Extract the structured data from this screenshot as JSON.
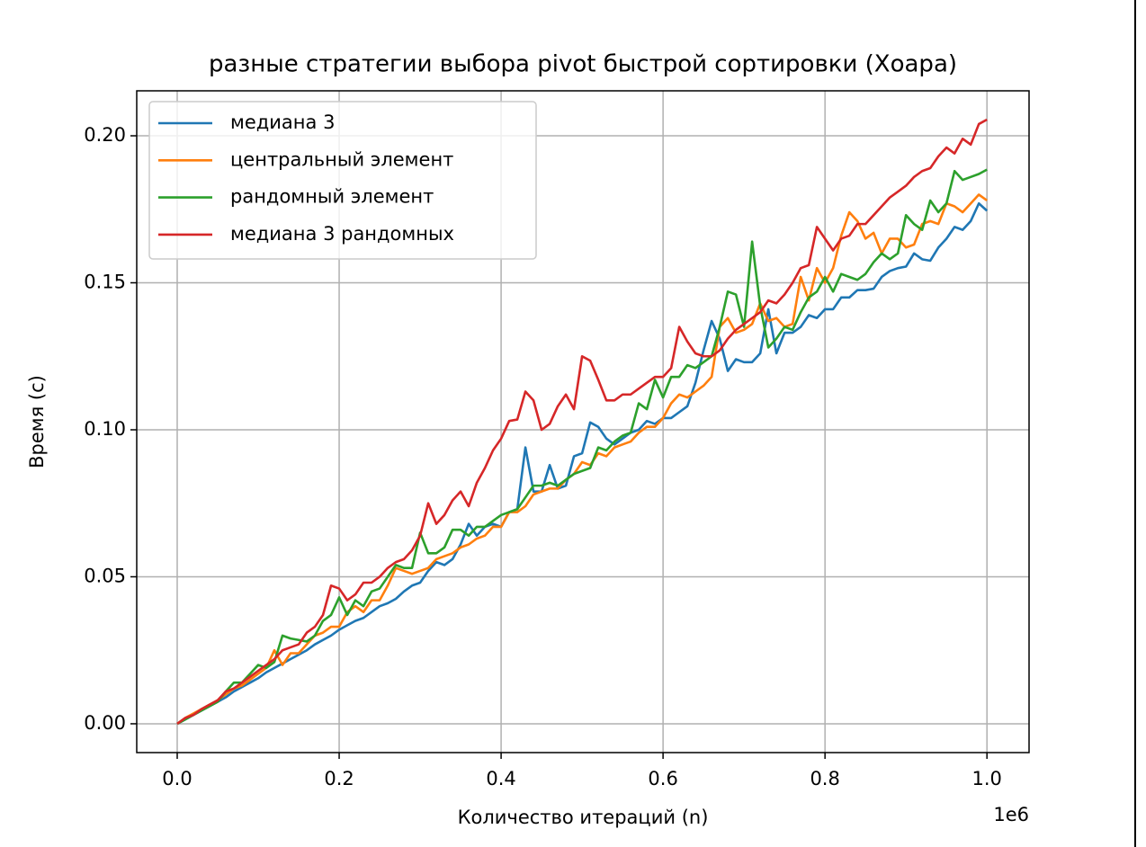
{
  "chart_data": {
    "type": "line",
    "title": "разные стратегии выбора pivot быстрой сортировки (Хоара)",
    "x_label": "Количество итераций (n)",
    "y_label": "Время (с)",
    "x_offset_label": "1e6",
    "grid": true,
    "legend": "upper left",
    "xlim": [
      -50000,
      1052000
    ],
    "ylim": [
      -0.0098,
      0.2153
    ],
    "xticks": [
      {
        "value": 0,
        "label": "0.0"
      },
      {
        "value": 200000,
        "label": "0.2"
      },
      {
        "value": 400000,
        "label": "0.4"
      },
      {
        "value": 600000,
        "label": "0.6"
      },
      {
        "value": 800000,
        "label": "0.8"
      },
      {
        "value": 1000000,
        "label": "1.0"
      }
    ],
    "yticks": [
      {
        "value": 0,
        "label": "0.00"
      },
      0.05,
      {
        "value": 0.1,
        "label": "0.10"
      },
      0.15,
      {
        "value": 0.2,
        "label": "0.20"
      }
    ],
    "x": [
      0,
      10000,
      20000,
      30000,
      40000,
      50000,
      60000,
      70000,
      80000,
      90000,
      100000,
      110000,
      120000,
      130000,
      140000,
      150000,
      160000,
      170000,
      180000,
      190000,
      200000,
      210000,
      220000,
      230000,
      240000,
      250000,
      260000,
      270000,
      280000,
      290000,
      300000,
      310000,
      320000,
      330000,
      340000,
      350000,
      360000,
      370000,
      380000,
      390000,
      400000,
      410000,
      420000,
      430000,
      440000,
      450000,
      460000,
      470000,
      480000,
      490000,
      500000,
      510000,
      520000,
      530000,
      540000,
      550000,
      560000,
      570000,
      580000,
      590000,
      600000,
      610000,
      620000,
      630000,
      640000,
      650000,
      660000,
      670000,
      680000,
      690000,
      700000,
      710000,
      720000,
      730000,
      740000,
      750000,
      760000,
      770000,
      780000,
      790000,
      800000,
      810000,
      820000,
      830000,
      840000,
      850000,
      860000,
      870000,
      880000,
      890000,
      900000,
      910000,
      920000,
      930000,
      940000,
      950000,
      960000,
      970000,
      980000,
      990000,
      1000000
    ],
    "series": [
      {
        "name": "медиана 3",
        "color": "#1f77b4",
        "values": [
          0,
          0.0015,
          0.003,
          0.0045,
          0.006,
          0.0075,
          0.009,
          0.011,
          0.0125,
          0.014,
          0.0155,
          0.0175,
          0.019,
          0.0205,
          0.022,
          0.0235,
          0.025,
          0.027,
          0.0285,
          0.03,
          0.032,
          0.0335,
          0.035,
          0.036,
          0.038,
          0.04,
          0.041,
          0.0425,
          0.045,
          0.047,
          0.048,
          0.052,
          0.055,
          0.054,
          0.056,
          0.061,
          0.068,
          0.064,
          0.067,
          0.068,
          0.067,
          0.072,
          0.073,
          0.094,
          0.079,
          0.079,
          0.088,
          0.08,
          0.081,
          0.091,
          0.092,
          0.1025,
          0.101,
          0.097,
          0.095,
          0.097,
          0.099,
          0.1,
          0.103,
          0.102,
          0.104,
          0.104,
          0.106,
          0.108,
          0.116,
          0.127,
          0.137,
          0.131,
          0.12,
          0.124,
          0.123,
          0.123,
          0.126,
          0.141,
          0.126,
          0.133,
          0.133,
          0.135,
          0.139,
          0.138,
          0.141,
          0.141,
          0.145,
          0.145,
          0.1475,
          0.1475,
          0.148,
          0.152,
          0.154,
          0.155,
          0.1555,
          0.16,
          0.158,
          0.1575,
          0.162,
          0.165,
          0.169,
          0.168,
          0.171,
          0.177,
          0.1745
        ]
      },
      {
        "name": "центральный элемент",
        "color": "#ff7f0e",
        "values": [
          0,
          0.002,
          0.0035,
          0.005,
          0.0065,
          0.008,
          0.01,
          0.012,
          0.013,
          0.015,
          0.017,
          0.019,
          0.025,
          0.02,
          0.024,
          0.024,
          0.027,
          0.03,
          0.031,
          0.033,
          0.033,
          0.038,
          0.04,
          0.038,
          0.042,
          0.042,
          0.047,
          0.053,
          0.052,
          0.051,
          0.052,
          0.053,
          0.056,
          0.057,
          0.058,
          0.06,
          0.061,
          0.063,
          0.064,
          0.067,
          0.067,
          0.072,
          0.072,
          0.074,
          0.078,
          0.079,
          0.08,
          0.08,
          0.083,
          0.085,
          0.089,
          0.088,
          0.092,
          0.091,
          0.094,
          0.095,
          0.096,
          0.099,
          0.101,
          0.101,
          0.104,
          0.109,
          0.112,
          0.111,
          0.113,
          0.115,
          0.118,
          0.135,
          0.138,
          0.133,
          0.134,
          0.136,
          0.143,
          0.137,
          0.138,
          0.135,
          0.136,
          0.152,
          0.144,
          0.155,
          0.15,
          0.155,
          0.166,
          0.174,
          0.171,
          0.165,
          0.167,
          0.16,
          0.165,
          0.165,
          0.162,
          0.163,
          0.17,
          0.171,
          0.17,
          0.177,
          0.176,
          0.174,
          0.177,
          0.18,
          0.178
        ]
      },
      {
        "name": "рандомный элемент",
        "color": "#2ca02c",
        "values": [
          0,
          0.0015,
          0.003,
          0.0045,
          0.006,
          0.0075,
          0.011,
          0.014,
          0.014,
          0.017,
          0.02,
          0.019,
          0.021,
          0.03,
          0.029,
          0.0285,
          0.028,
          0.03,
          0.035,
          0.037,
          0.043,
          0.037,
          0.042,
          0.04,
          0.045,
          0.046,
          0.05,
          0.054,
          0.053,
          0.053,
          0.065,
          0.058,
          0.058,
          0.06,
          0.066,
          0.066,
          0.064,
          0.067,
          0.067,
          0.069,
          0.071,
          0.072,
          0.073,
          0.077,
          0.081,
          0.081,
          0.082,
          0.081,
          0.083,
          0.085,
          0.086,
          0.087,
          0.094,
          0.093,
          0.096,
          0.098,
          0.099,
          0.109,
          0.107,
          0.117,
          0.111,
          0.118,
          0.118,
          0.122,
          0.121,
          0.123,
          0.125,
          0.135,
          0.147,
          0.146,
          0.135,
          0.164,
          0.142,
          0.128,
          0.131,
          0.135,
          0.134,
          0.14,
          0.145,
          0.147,
          0.152,
          0.147,
          0.153,
          0.152,
          0.151,
          0.153,
          0.157,
          0.16,
          0.158,
          0.16,
          0.173,
          0.17,
          0.168,
          0.178,
          0.174,
          0.177,
          0.188,
          0.185,
          0.186,
          0.187,
          0.1885
        ]
      },
      {
        "name": "медиана 3 рандомных",
        "color": "#d62728",
        "values": [
          0,
          0.002,
          0.003,
          0.005,
          0.0065,
          0.008,
          0.011,
          0.012,
          0.014,
          0.016,
          0.018,
          0.02,
          0.022,
          0.025,
          0.026,
          0.027,
          0.031,
          0.033,
          0.037,
          0.047,
          0.046,
          0.042,
          0.044,
          0.048,
          0.048,
          0.05,
          0.053,
          0.055,
          0.056,
          0.059,
          0.064,
          0.075,
          0.068,
          0.071,
          0.076,
          0.079,
          0.074,
          0.082,
          0.087,
          0.093,
          0.097,
          0.103,
          0.1035,
          0.113,
          0.11,
          0.1,
          0.102,
          0.108,
          0.112,
          0.107,
          0.125,
          0.1235,
          0.117,
          0.11,
          0.11,
          0.112,
          0.112,
          0.114,
          0.116,
          0.118,
          0.118,
          0.121,
          0.135,
          0.13,
          0.126,
          0.125,
          0.125,
          0.127,
          0.131,
          0.134,
          0.136,
          0.138,
          0.14,
          0.144,
          0.143,
          0.146,
          0.15,
          0.155,
          0.156,
          0.169,
          0.165,
          0.161,
          0.165,
          0.166,
          0.17,
          0.17,
          0.173,
          0.176,
          0.179,
          0.181,
          0.183,
          0.186,
          0.188,
          0.189,
          0.193,
          0.196,
          0.194,
          0.199,
          0.197,
          0.204,
          0.2055
        ]
      }
    ]
  }
}
